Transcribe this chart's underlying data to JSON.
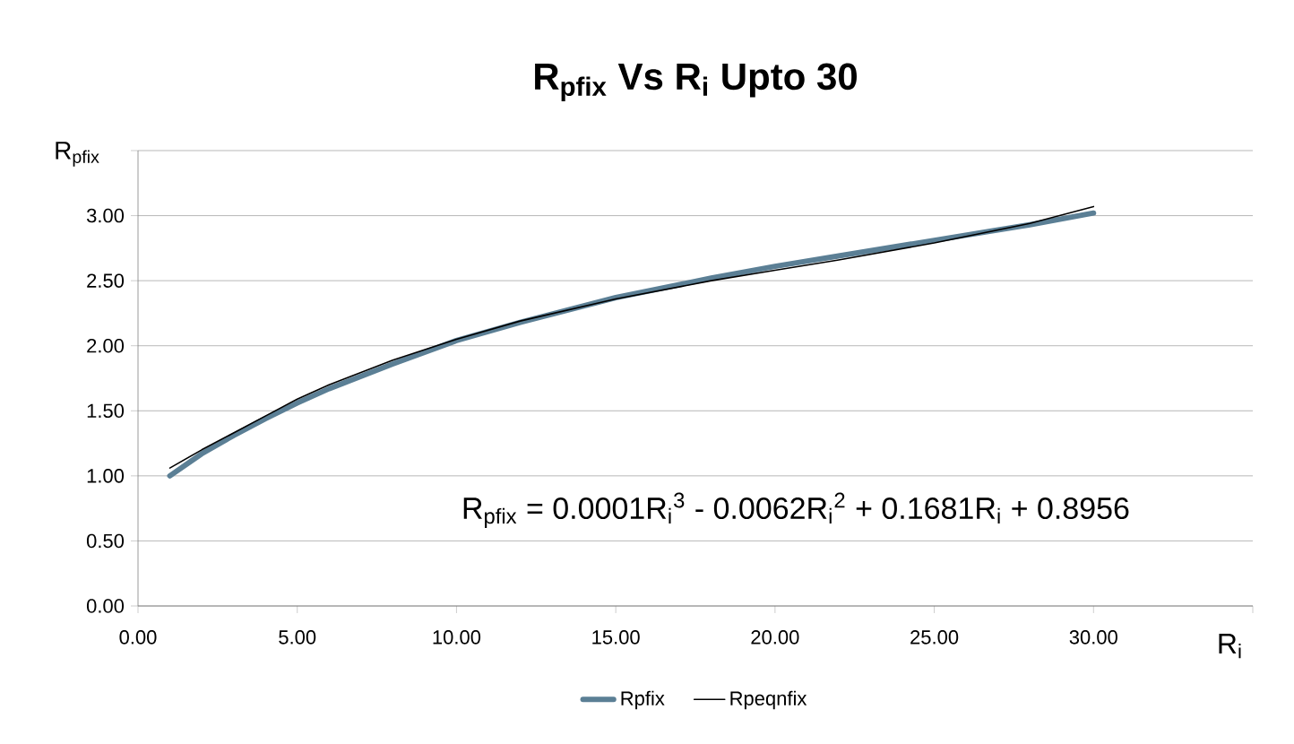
{
  "chart_data": {
    "type": "line",
    "title": "**R$_{pfix}$ Vs R$_{i}$ Upto 30**",
    "xlabel": "R$_{i}$",
    "ylabel": "R$_{pfix}$",
    "annotations": [
      "R$_{pfix}$ = 0.0001R$_{i}$$^{3}$ - 0.0062R$_{i}$$^{2}$ + 0.1681R$_{i}$ + 0.8956"
    ],
    "x": [
      1,
      2,
      3,
      4,
      5,
      6,
      8,
      10,
      12,
      15,
      18,
      20,
      22,
      25,
      28,
      30
    ],
    "series": [
      {
        "name": "Rpfix",
        "color": "#5b7f95",
        "values": [
          1.0,
          1.17,
          1.31,
          1.44,
          1.56,
          1.67,
          1.86,
          2.04,
          2.18,
          2.37,
          2.52,
          2.61,
          2.69,
          2.81,
          2.93,
          3.02
        ]
      },
      {
        "name": "Rpeqnfix",
        "color": "#000000",
        "values": [
          1.06,
          1.2,
          1.33,
          1.46,
          1.59,
          1.7,
          1.89,
          2.05,
          2.19,
          2.36,
          2.5,
          2.58,
          2.66,
          2.79,
          2.94,
          3.07
        ]
      }
    ],
    "xlim": [
      0,
      35
    ],
    "ylim": [
      0,
      3.5
    ],
    "xticks": [
      {
        "value": 0,
        "label": "0.00"
      },
      {
        "value": 5,
        "label": "5.00"
      },
      {
        "value": 10,
        "label": "10.00"
      },
      {
        "value": 15,
        "label": "15.00"
      },
      {
        "value": 20,
        "label": "20.00"
      },
      {
        "value": 25,
        "label": "25.00"
      },
      {
        "value": 30,
        "label": "30.00"
      },
      {
        "value": 35,
        "label": null
      }
    ],
    "yticks": [
      {
        "value": 0,
        "label": "0.00"
      },
      {
        "value": 0.5,
        "label": "0.50"
      },
      {
        "value": 1,
        "label": "1.00"
      },
      {
        "value": 1.5,
        "label": "1.50"
      },
      {
        "value": 2,
        "label": "2.00"
      },
      {
        "value": 2.5,
        "label": "2.50"
      },
      {
        "value": 3,
        "label": "3.00"
      },
      {
        "value": 3.5,
        "label": null
      }
    ],
    "grid": "y",
    "legend": "bottom",
    "marker": "none",
    "line_style": "solid"
  }
}
